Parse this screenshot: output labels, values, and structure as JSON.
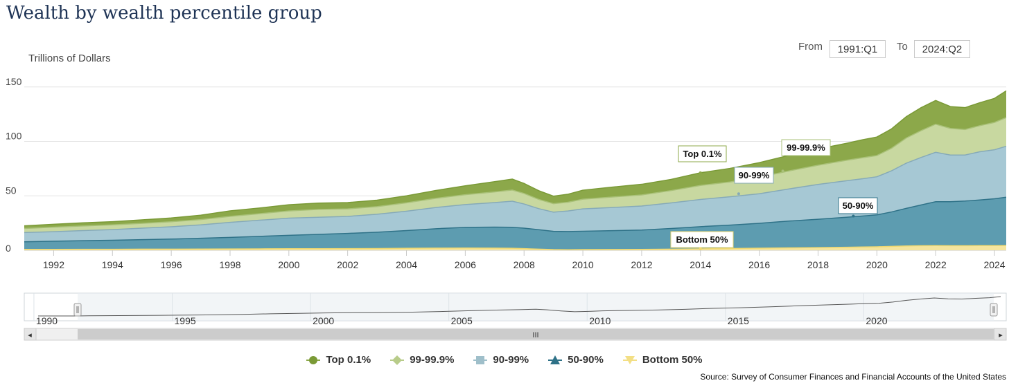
{
  "title": "Wealth by wealth percentile group",
  "range": {
    "from_label": "From",
    "from_value": "1991:Q1",
    "to_label": "To",
    "to_value": "2024:Q2"
  },
  "source": "Source: Survey of Consumer Finances and Financial Accounts of the United States",
  "colors": {
    "top01": "#8ca84a",
    "p99_999": "#c8d8a0",
    "p90_99": "#a6c8d4",
    "p50_90": "#5d9cb0",
    "bottom50": "#f5e59e"
  },
  "chart_data": {
    "type": "area",
    "stacked": true,
    "ylabel": "Trillions of Dollars",
    "ylim": [
      0,
      160
    ],
    "yticks": [
      0,
      50,
      100,
      150
    ],
    "xlim": [
      1991.0,
      2024.4
    ],
    "xticks": [
      "1992",
      "1994",
      "1996",
      "1998",
      "2000",
      "2002",
      "2004",
      "2006",
      "2008",
      "2010",
      "2012",
      "2014",
      "2016",
      "2018",
      "2020",
      "2022",
      "2024"
    ],
    "x": [
      1991,
      1992,
      1993,
      1994,
      1995,
      1996,
      1997,
      1998,
      1999,
      2000,
      2001,
      2002,
      2003,
      2004,
      2005,
      2006,
      2007,
      2007.6,
      2008,
      2008.5,
      2009,
      2009.5,
      2010,
      2011,
      2012,
      2013,
      2014,
      2015,
      2016,
      2017,
      2018,
      2019,
      2019.5,
      2020,
      2020.5,
      2021,
      2021.5,
      2022,
      2022.5,
      2023,
      2023.5,
      2024,
      2024.4
    ],
    "series": [
      {
        "name": "Bottom 50%",
        "values": [
          0.8,
          0.8,
          0.9,
          0.9,
          1.0,
          1.0,
          1.1,
          1.2,
          1.3,
          1.4,
          1.4,
          1.5,
          1.6,
          1.8,
          2.0,
          2.1,
          2.0,
          1.8,
          1.5,
          1.0,
          0.6,
          0.5,
          0.6,
          0.7,
          0.8,
          1.0,
          1.3,
          1.6,
          1.9,
          2.2,
          2.5,
          2.8,
          3.0,
          3.2,
          3.6,
          4.0,
          4.2,
          4.3,
          4.2,
          4.2,
          4.3,
          4.3,
          4.4
        ]
      },
      {
        "name": "50-90%",
        "values": [
          7.0,
          7.5,
          7.9,
          8.3,
          8.8,
          9.3,
          9.9,
          10.6,
          11.5,
          12.3,
          13.2,
          14.0,
          15.0,
          16.3,
          17.8,
          18.9,
          19.3,
          19.3,
          18.8,
          17.9,
          16.8,
          16.7,
          16.9,
          17.3,
          17.8,
          19.0,
          20.4,
          21.5,
          22.9,
          24.6,
          26.0,
          27.6,
          28.4,
          29.3,
          31.6,
          34.5,
          37.4,
          40.3,
          40.4,
          41.0,
          41.9,
          43.0,
          44.3
        ]
      },
      {
        "name": "90-99%",
        "values": [
          8.5,
          8.8,
          9.3,
          9.8,
          10.5,
          11.3,
          12.3,
          13.8,
          14.8,
          15.8,
          15.7,
          15.6,
          16.5,
          17.8,
          19.5,
          21.0,
          22.5,
          24.0,
          22.2,
          19.3,
          17.6,
          18.9,
          20.5,
          21.3,
          22.0,
          23.5,
          25.0,
          26.0,
          27.1,
          29.5,
          32.0,
          33.6,
          34.2,
          35.0,
          37.8,
          41.5,
          43.6,
          45.4,
          42.9,
          42.3,
          44.3,
          45.0,
          46.8
        ]
      },
      {
        "name": "99-99.9%",
        "values": [
          3.7,
          4.1,
          4.2,
          4.3,
          4.4,
          4.6,
          4.9,
          5.5,
          6.0,
          6.6,
          7.2,
          6.9,
          7.0,
          7.7,
          8.4,
          9.0,
          9.8,
          10.2,
          9.7,
          8.5,
          7.8,
          8.0,
          8.9,
          9.6,
          10.2,
          11.3,
          12.8,
          13.6,
          15.2,
          16.5,
          17.6,
          18.8,
          19.3,
          19.5,
          20.7,
          23.1,
          24.6,
          25.8,
          24.4,
          23.4,
          23.9,
          25.1,
          26.4
        ]
      },
      {
        "name": "Top 0.1%",
        "values": [
          2.5,
          2.7,
          2.9,
          3.0,
          3.2,
          3.5,
          4.0,
          5.1,
          5.2,
          5.7,
          5.8,
          5.8,
          5.9,
          6.4,
          7.2,
          8.2,
          9.4,
          10.1,
          9.2,
          8.0,
          6.9,
          7.4,
          8.3,
          9.1,
          9.8,
          10.3,
          11.7,
          12.5,
          13.4,
          14.3,
          14.9,
          15.6,
          16.5,
          17.0,
          17.8,
          19.6,
          21.1,
          21.8,
          20.1,
          20.1,
          21.1,
          22.1,
          24.5
        ]
      }
    ],
    "annotations": [
      "Top 0.1%",
      "99-99.9%",
      "90-99%",
      "50-90%",
      "Bottom 50%"
    ],
    "legend_position": "bottom",
    "navigator_ticks": [
      "1990",
      "1995",
      "2000",
      "2005",
      "2010",
      "2015",
      "2020"
    ]
  },
  "scroll": {
    "thumb_glyph": "III",
    "left_arrow": "◂",
    "right_arrow": "▸"
  }
}
